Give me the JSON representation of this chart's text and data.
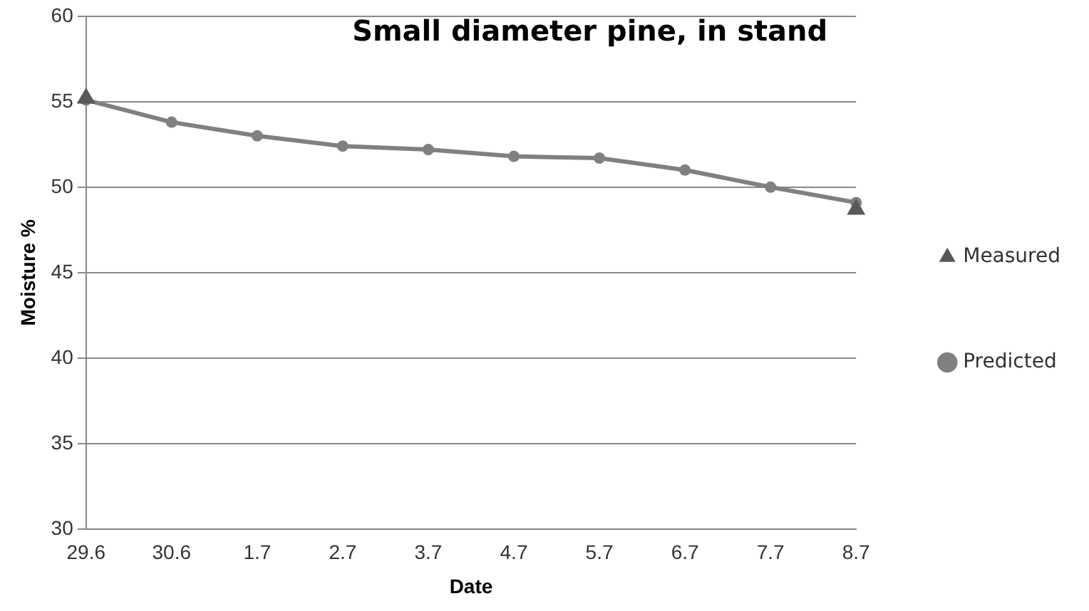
{
  "chart_data": {
    "type": "line",
    "title": "Small diameter pine, in stand",
    "xlabel": "Date",
    "ylabel": "Moisture %",
    "categories": [
      "29.6",
      "30.6",
      "1.7",
      "2.7",
      "3.7",
      "4.7",
      "5.7",
      "6.7",
      "7.7",
      "8.7"
    ],
    "series": [
      {
        "name": "Predicted",
        "type": "line",
        "color": "#808080",
        "marker": "circle",
        "values": [
          55.1,
          53.8,
          53,
          52.4,
          52.2,
          51.8,
          51.7,
          51,
          50,
          49.1
        ]
      },
      {
        "name": "Measured",
        "type": "scatter",
        "color": "#595959",
        "marker": "triangle",
        "values": [
          55.2,
          null,
          null,
          null,
          null,
          null,
          null,
          null,
          null,
          48.7
        ]
      }
    ],
    "ylim": [
      30,
      60
    ],
    "yticks": [
      30,
      35,
      40,
      45,
      50,
      55,
      60
    ],
    "grid": "y",
    "legend": "right"
  }
}
